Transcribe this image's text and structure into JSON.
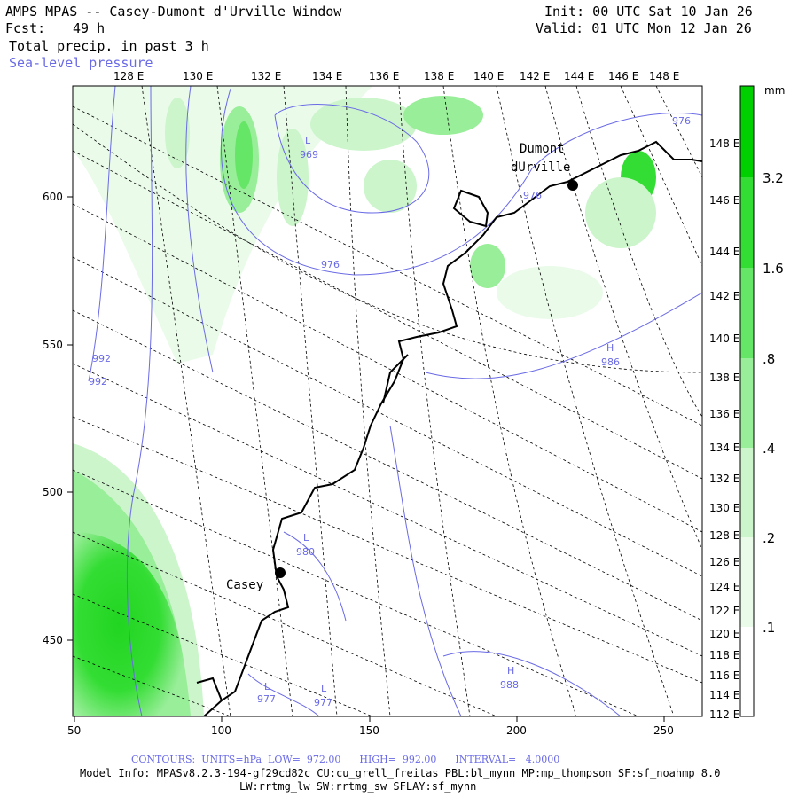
{
  "header": {
    "title": "AMPS MPAS -- Casey-Dumont d'Urville Window",
    "fcst_label": "Fcst:",
    "fcst_value": "49 h",
    "field1": "Total precip. in past 3 h",
    "field2": "Sea-level pressure",
    "init": "Init: 00 UTC Sat 10 Jan 26",
    "valid": "Valid: 01 UTC Mon 12 Jan 26"
  },
  "map": {
    "top_lon_labels": [
      "128 E",
      "130 E",
      "132 E",
      "134 E",
      "136 E",
      "138 E",
      "140 E",
      "142 E",
      "144 E",
      "146 E",
      "148 E"
    ],
    "right_lon_labels": [
      "148 E",
      "146 E",
      "144 E",
      "142 E",
      "140 E",
      "138 E",
      "136 E",
      "134 E",
      "132 E",
      "130 E",
      "128 E",
      "126 E",
      "124 E",
      "122 E",
      "120 E",
      "118 E",
      "116 E",
      "114 E",
      "112 E"
    ],
    "x_ticks": [
      "50",
      "100",
      "150",
      "200",
      "250"
    ],
    "y_ticks": [
      "600",
      "550",
      "500",
      "450"
    ],
    "places": [
      {
        "name": "Dumont",
        "name2": "dUrville"
      },
      {
        "name": "Casey"
      }
    ],
    "pressure_labels": [
      {
        "label": "L",
        "value": "969"
      },
      {
        "label": "",
        "value": "976"
      },
      {
        "label": "",
        "value": "976"
      },
      {
        "label": "",
        "value": "976"
      },
      {
        "label": "",
        "value": "992"
      },
      {
        "label": "",
        "value": "992"
      },
      {
        "label": "H",
        "value": "986"
      },
      {
        "label": "L",
        "value": "980"
      },
      {
        "label": "L",
        "value": "977"
      },
      {
        "label": "L",
        "value": "977"
      },
      {
        "label": "H",
        "value": "988"
      }
    ]
  },
  "colorbar": {
    "unit": "mm",
    "labels": [
      "3.2",
      "1.6",
      ".8",
      ".4",
      ".2",
      ".1"
    ],
    "colors": [
      "#00d000",
      "#33dd33",
      "#66e666",
      "#99ee99",
      "#ccf5cc",
      "#eafbea"
    ]
  },
  "footer": {
    "contours": "CONTOURS:  UNITS=hPa  LOW=  972.00      HIGH=  992.00      INTERVAL=   4.0000",
    "model_info": "Model Info: MPASv8.2.3-194-gf29cd82c CU:cu_grell_freitas PBL:bl_mynn MP:mp_thompson SF:sf_noahmp 8.0",
    "model_info2": "LW:rrtmg_lw SW:rrtmg_sw SFLAY:sf_mynn"
  }
}
